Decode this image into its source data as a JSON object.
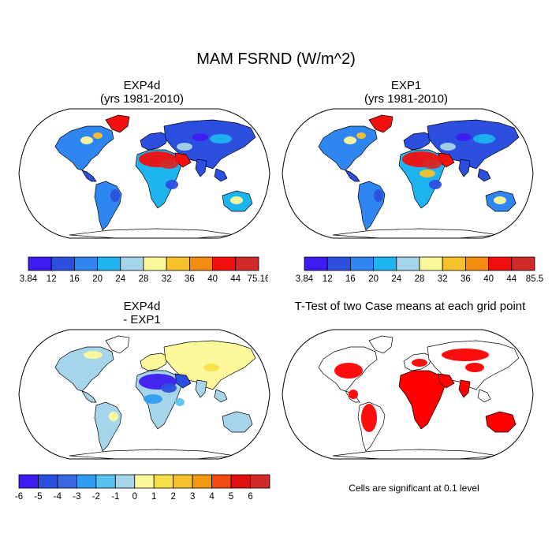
{
  "figure": {
    "title": "MAM FSRND (W/m^2)"
  },
  "panels": [
    {
      "id": "exp4d",
      "title_line1": "EXP4d",
      "title_line2": "(yrs 1981-2010)",
      "colorbar": {
        "labels": [
          "3.84",
          "12",
          "16",
          "20",
          "24",
          "28",
          "32",
          "36",
          "40",
          "44",
          "75.16"
        ],
        "colors": [
          "#3c1cf0",
          "#2c4fe0",
          "#2f86f0",
          "#1eb4f0",
          "#a6d4ea",
          "#fdf89a",
          "#f6c12a",
          "#f48c10",
          "#f2100f",
          "#d22a2a"
        ]
      }
    },
    {
      "id": "exp1",
      "title_line1": "EXP1",
      "title_line2": "(yrs 1981-2010)",
      "colorbar": {
        "labels": [
          "3.84",
          "12",
          "16",
          "20",
          "24",
          "28",
          "32",
          "36",
          "40",
          "44",
          "85.5"
        ],
        "colors": [
          "#3c1cf0",
          "#2c4fe0",
          "#2f86f0",
          "#1eb4f0",
          "#a6d4ea",
          "#fdf89a",
          "#f6c12a",
          "#f48c10",
          "#f2100f",
          "#d22a2a"
        ]
      }
    },
    {
      "id": "diff",
      "title_line1": "EXP4d",
      "title_line2": "- EXP1",
      "colorbar": {
        "labels": [
          "-6",
          "-5",
          "-4",
          "-3",
          "-2",
          "-1",
          "0",
          "1",
          "2",
          "3",
          "4",
          "5",
          "6"
        ],
        "colors": [
          "#3c1cf0",
          "#2c4fe0",
          "#3a68e0",
          "#2f9cf0",
          "#56c2f0",
          "#a6d4ea",
          "#fdf89a",
          "#f6e04a",
          "#f6c12a",
          "#f49810",
          "#f24a10",
          "#e0100f",
          "#d22a2a"
        ]
      }
    },
    {
      "id": "ttest",
      "title_line1": "T-Test of two Case means at each grid point",
      "note": "Cells are significant at 0.1 level"
    }
  ]
}
